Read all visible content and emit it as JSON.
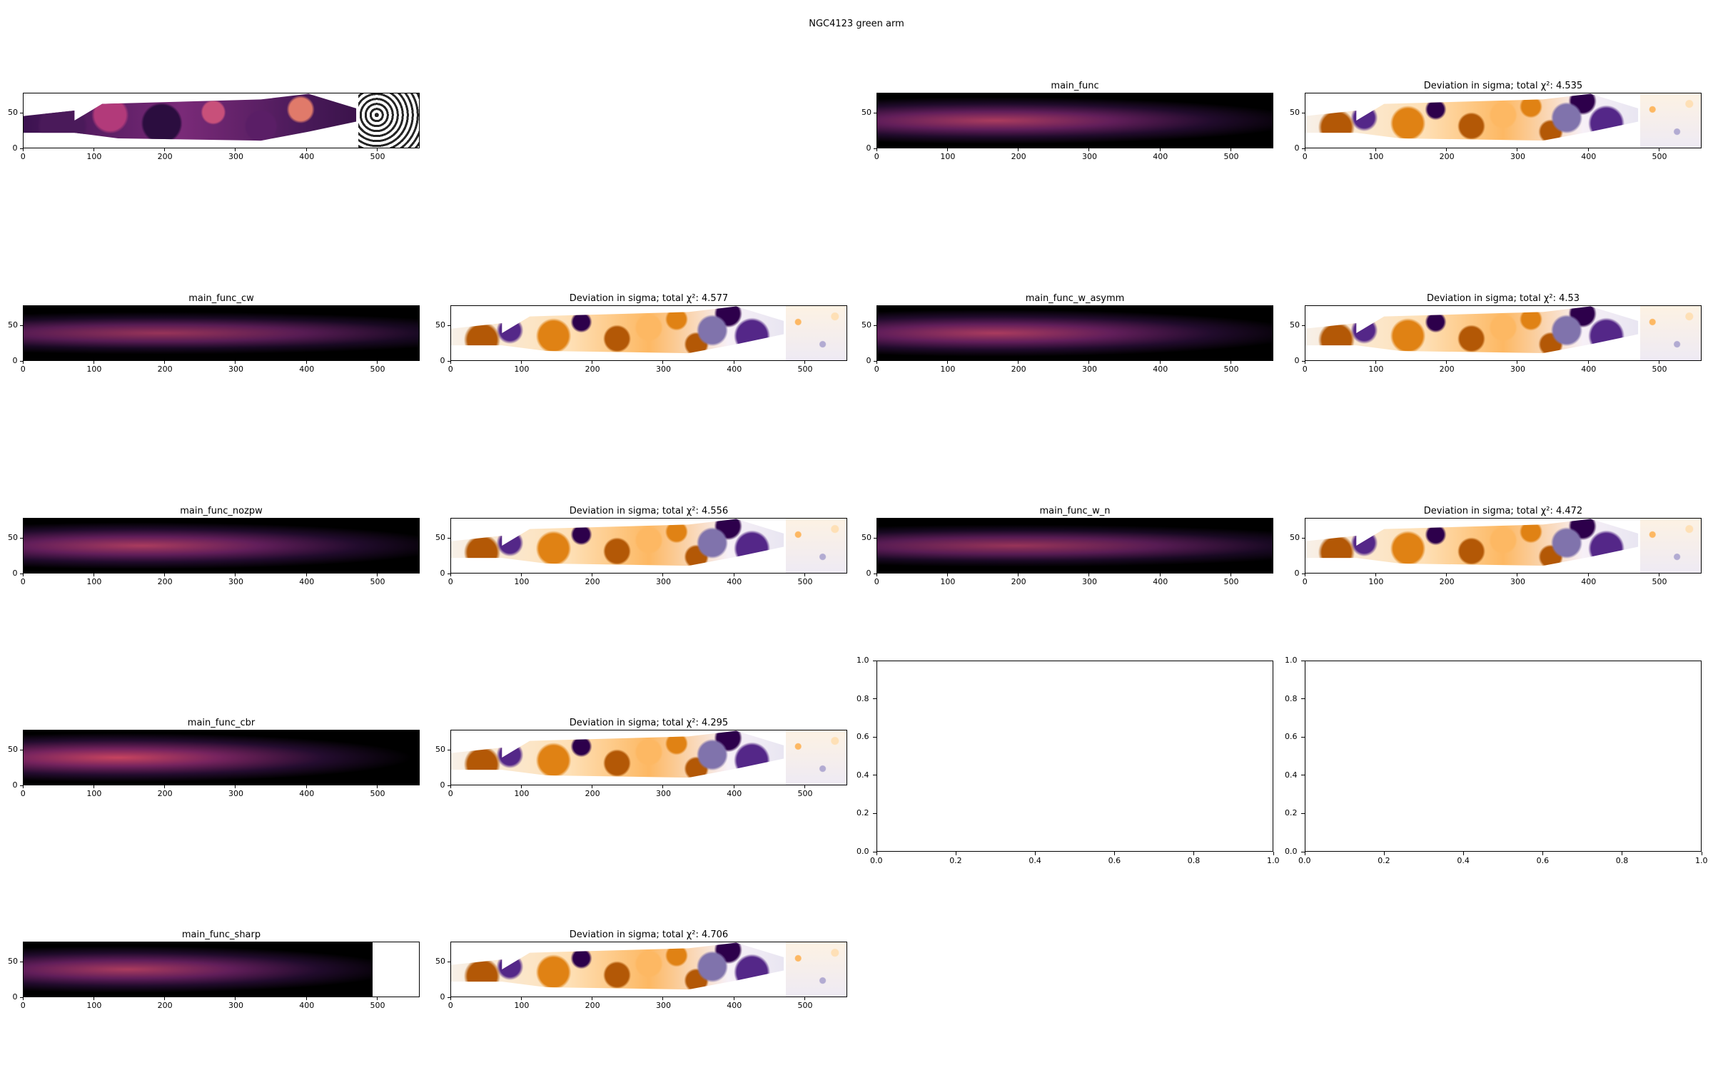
{
  "figure": {
    "suptitle": "NGC4123 green arm"
  },
  "chart_data": [
    {
      "type": "heatmap",
      "panel": "data",
      "title": "",
      "xticks": [
        "0",
        "100",
        "200",
        "300",
        "400",
        "500"
      ],
      "yticks": [
        "0",
        "50"
      ],
      "xlim": [
        0,
        560
      ],
      "ylim": [
        0,
        78
      ],
      "colormap": "magma"
    },
    {
      "type": "heatmap",
      "panel": "model",
      "title": "main_func",
      "xticks": [
        "0",
        "100",
        "200",
        "300",
        "400",
        "500"
      ],
      "yticks": [
        "0",
        "50"
      ],
      "xlim": [
        0,
        560
      ],
      "ylim": [
        0,
        78
      ],
      "colormap": "magma"
    },
    {
      "type": "heatmap",
      "panel": "deviation",
      "title": "Deviation in sigma; total χ²: 4.535",
      "chi2": 4.535,
      "xticks": [
        "0",
        "100",
        "200",
        "300",
        "400",
        "500"
      ],
      "yticks": [
        "0",
        "50"
      ],
      "xlim": [
        0,
        560
      ],
      "ylim": [
        0,
        78
      ],
      "colormap": "PuOr"
    },
    {
      "type": "heatmap",
      "panel": "model",
      "title": "main_func_cw",
      "xticks": [
        "0",
        "100",
        "200",
        "300",
        "400",
        "500"
      ],
      "yticks": [
        "0",
        "50"
      ],
      "xlim": [
        0,
        560
      ],
      "ylim": [
        0,
        78
      ],
      "colormap": "magma"
    },
    {
      "type": "heatmap",
      "panel": "deviation",
      "title": "Deviation in sigma; total χ²: 4.577",
      "chi2": 4.577,
      "xticks": [
        "0",
        "100",
        "200",
        "300",
        "400",
        "500"
      ],
      "yticks": [
        "0",
        "50"
      ],
      "xlim": [
        0,
        560
      ],
      "ylim": [
        0,
        78
      ],
      "colormap": "PuOr"
    },
    {
      "type": "heatmap",
      "panel": "model",
      "title": "main_func_w_asymm",
      "xticks": [
        "0",
        "100",
        "200",
        "300",
        "400",
        "500"
      ],
      "yticks": [
        "0",
        "50"
      ],
      "xlim": [
        0,
        560
      ],
      "ylim": [
        0,
        78
      ],
      "colormap": "magma"
    },
    {
      "type": "heatmap",
      "panel": "deviation",
      "title": "Deviation in sigma; total χ²: 4.53",
      "chi2": 4.53,
      "xticks": [
        "0",
        "100",
        "200",
        "300",
        "400",
        "500"
      ],
      "yticks": [
        "0",
        "50"
      ],
      "xlim": [
        0,
        560
      ],
      "ylim": [
        0,
        78
      ],
      "colormap": "PuOr"
    },
    {
      "type": "heatmap",
      "panel": "model",
      "title": "main_func_nozpw",
      "xticks": [
        "0",
        "100",
        "200",
        "300",
        "400",
        "500"
      ],
      "yticks": [
        "0",
        "50"
      ],
      "xlim": [
        0,
        560
      ],
      "ylim": [
        0,
        78
      ],
      "colormap": "magma"
    },
    {
      "type": "heatmap",
      "panel": "deviation",
      "title": "Deviation in sigma; total χ²: 4.556",
      "chi2": 4.556,
      "xticks": [
        "0",
        "100",
        "200",
        "300",
        "400",
        "500"
      ],
      "yticks": [
        "0",
        "50"
      ],
      "xlim": [
        0,
        560
      ],
      "ylim": [
        0,
        78
      ],
      "colormap": "PuOr"
    },
    {
      "type": "heatmap",
      "panel": "model",
      "title": "main_func_w_n",
      "xticks": [
        "0",
        "100",
        "200",
        "300",
        "400",
        "500"
      ],
      "yticks": [
        "0",
        "50"
      ],
      "xlim": [
        0,
        560
      ],
      "ylim": [
        0,
        78
      ],
      "colormap": "magma"
    },
    {
      "type": "heatmap",
      "panel": "deviation",
      "title": "Deviation in sigma; total χ²: 4.472",
      "chi2": 4.472,
      "xticks": [
        "0",
        "100",
        "200",
        "300",
        "400",
        "500"
      ],
      "yticks": [
        "0",
        "50"
      ],
      "xlim": [
        0,
        560
      ],
      "ylim": [
        0,
        78
      ],
      "colormap": "PuOr"
    },
    {
      "type": "heatmap",
      "panel": "model",
      "title": "main_func_cbr",
      "xticks": [
        "0",
        "100",
        "200",
        "300",
        "400",
        "500"
      ],
      "yticks": [
        "0",
        "50"
      ],
      "xlim": [
        0,
        560
      ],
      "ylim": [
        0,
        78
      ],
      "colormap": "magma"
    },
    {
      "type": "heatmap",
      "panel": "deviation",
      "title": "Deviation in sigma; total χ²: 4.295",
      "chi2": 4.295,
      "xticks": [
        "0",
        "100",
        "200",
        "300",
        "400",
        "500"
      ],
      "yticks": [
        "0",
        "50"
      ],
      "xlim": [
        0,
        560
      ],
      "ylim": [
        0,
        78
      ],
      "colormap": "PuOr"
    },
    {
      "type": "empty",
      "panel": "empty",
      "title": "",
      "xticks": [
        "0.0",
        "0.2",
        "0.4",
        "0.6",
        "0.8",
        "1.0"
      ],
      "yticks": [
        "0.0",
        "0.2",
        "0.4",
        "0.6",
        "0.8",
        "1.0"
      ],
      "xlim": [
        0,
        1
      ],
      "ylim": [
        0,
        1
      ]
    },
    {
      "type": "empty",
      "panel": "empty",
      "title": "",
      "xticks": [
        "0.0",
        "0.2",
        "0.4",
        "0.6",
        "0.8",
        "1.0"
      ],
      "yticks": [
        "0.0",
        "0.2",
        "0.4",
        "0.6",
        "0.8",
        "1.0"
      ],
      "xlim": [
        0,
        1
      ],
      "ylim": [
        0,
        1
      ]
    },
    {
      "type": "heatmap",
      "panel": "model",
      "title": "main_func_sharp",
      "xticks": [
        "0",
        "100",
        "200",
        "300",
        "400",
        "500"
      ],
      "yticks": [
        "0",
        "50"
      ],
      "xlim": [
        0,
        560
      ],
      "ylim": [
        0,
        78
      ],
      "colormap": "magma"
    },
    {
      "type": "heatmap",
      "panel": "deviation",
      "title": "Deviation in sigma; total χ²: 4.706",
      "chi2": 4.706,
      "xticks": [
        "0",
        "100",
        "200",
        "300",
        "400",
        "500"
      ],
      "yticks": [
        "0",
        "50"
      ],
      "xlim": [
        0,
        560
      ],
      "ylim": [
        0,
        78
      ],
      "colormap": "PuOr"
    }
  ]
}
